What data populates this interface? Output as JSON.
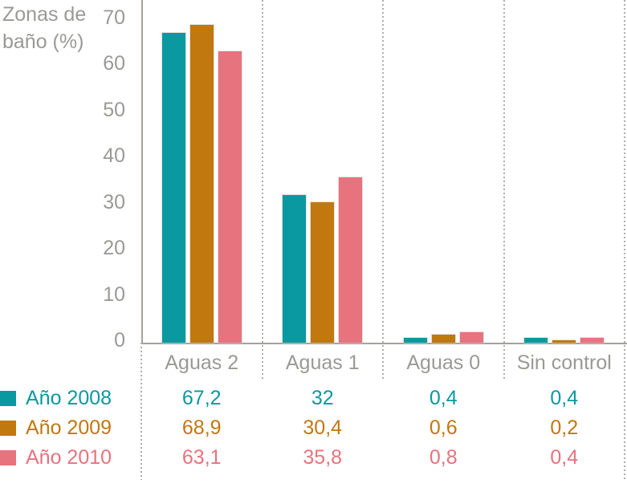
{
  "chart_data": {
    "type": "bar",
    "title": "",
    "y_axis_label": "Zonas de baño (%)",
    "categories": [
      "Aguas 2",
      "Aguas 1",
      "Aguas 0",
      "Sin control"
    ],
    "series": [
      {
        "name": "Año 2008",
        "color": "#0a99a0",
        "values": [
          67.2,
          32,
          0.4,
          0.4
        ],
        "labels": [
          "67,2",
          "32",
          "0,4",
          "0,4"
        ]
      },
      {
        "name": "Año 2009",
        "color": "#c1780f",
        "values": [
          68.9,
          30.4,
          0.6,
          0.2
        ],
        "labels": [
          "68,9",
          "30,4",
          "0,6",
          "0,2"
        ]
      },
      {
        "name": "Año 2010",
        "color": "#e7737e",
        "values": [
          63.1,
          35.8,
          0.8,
          0.4
        ],
        "labels": [
          "63,1",
          "35,8",
          "0,8",
          "0,4"
        ]
      }
    ],
    "yticks": [
      0,
      10,
      20,
      30,
      40,
      50,
      60,
      70
    ],
    "ylim": [
      0,
      74
    ],
    "grid": "vertical dotted separators between categories",
    "legend_position": "bottom-left, one row per series beside value table",
    "value_table_shown": true
  },
  "style": {
    "text_color": "#9a9a94",
    "axis_line_color": "#a5a29b",
    "separator_color": "#b0afaa",
    "background": "#ffffff"
  }
}
